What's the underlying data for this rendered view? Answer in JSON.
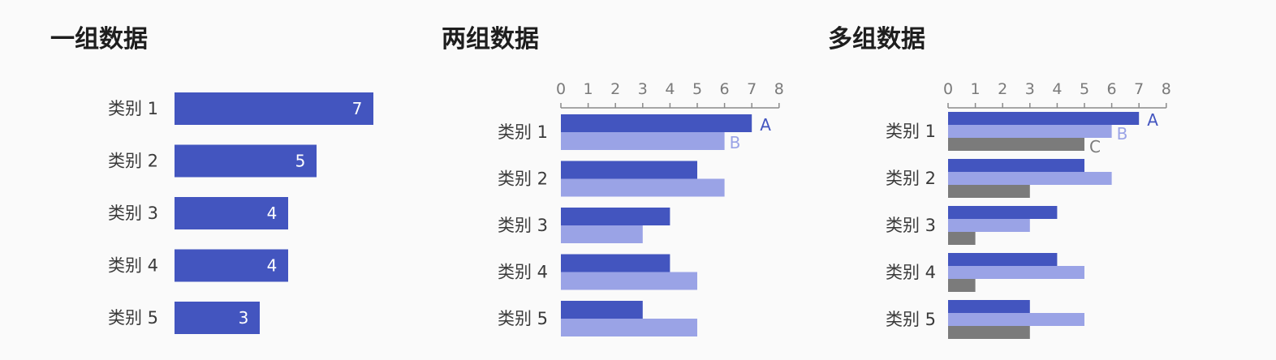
{
  "colors": {
    "A": "#4355bf",
    "B": "#9aa3e6",
    "C": "#7b7b7b",
    "axis": "#8a8a8a"
  },
  "chart_data": [
    {
      "type": "bar",
      "orientation": "horizontal",
      "title": "一组数据",
      "categories": [
        "类别 1",
        "类别 2",
        "类别 3",
        "类别 4",
        "类别 5"
      ],
      "series": [
        {
          "values": [
            7,
            5,
            4,
            4,
            3
          ],
          "color": "#4355bf"
        }
      ],
      "data_labels": [
        "7",
        "5",
        "4",
        "4",
        "3"
      ],
      "axis": "none",
      "grid": false
    },
    {
      "type": "bar",
      "orientation": "horizontal",
      "title": "两组数据",
      "categories": [
        "类别 1",
        "类别 2",
        "类别 3",
        "类别 4",
        "类别 5"
      ],
      "series": [
        {
          "name": "A",
          "values": [
            7,
            5,
            4,
            4,
            3
          ],
          "color": "#4355bf"
        },
        {
          "name": "B",
          "values": [
            6,
            6,
            3,
            5,
            5
          ],
          "color": "#9aa3e6"
        }
      ],
      "xlim": [
        0,
        8
      ],
      "xticks": [
        "0",
        "1",
        "2",
        "3",
        "4",
        "5",
        "6",
        "7",
        "8"
      ],
      "axis": "top",
      "grid": false
    },
    {
      "type": "bar",
      "orientation": "horizontal",
      "title": "多组数据",
      "categories": [
        "类别 1",
        "类别 2",
        "类别 3",
        "类别 4",
        "类别 5"
      ],
      "series": [
        {
          "name": "A",
          "values": [
            7,
            5,
            4,
            4,
            3
          ],
          "color": "#4355bf"
        },
        {
          "name": "B",
          "values": [
            6,
            6,
            3,
            5,
            5
          ],
          "color": "#9aa3e6"
        },
        {
          "name": "C",
          "values": [
            5,
            3,
            1,
            1,
            3
          ],
          "color": "#7b7b7b"
        }
      ],
      "xlim": [
        0,
        8
      ],
      "xticks": [
        "0",
        "1",
        "2",
        "3",
        "4",
        "5",
        "6",
        "7",
        "8"
      ],
      "axis": "top",
      "grid": false
    }
  ]
}
